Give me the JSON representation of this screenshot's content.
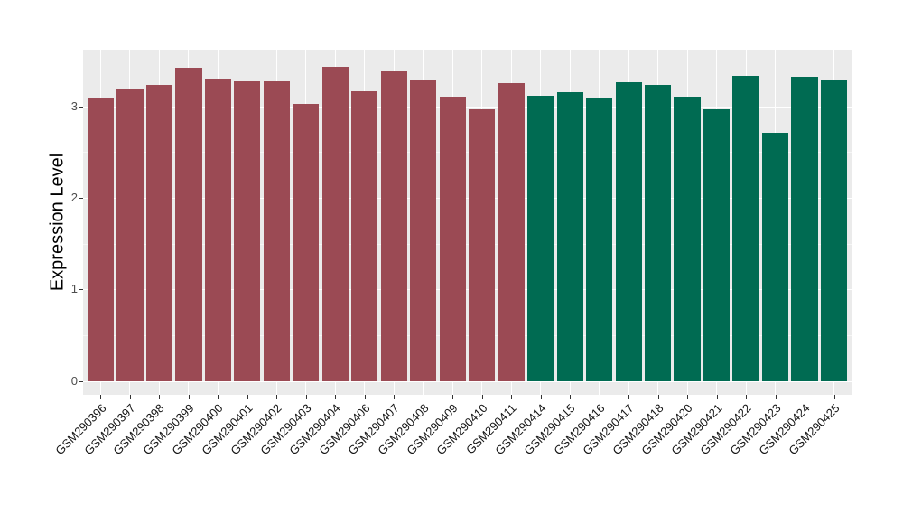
{
  "chart_data": {
    "type": "bar",
    "title": "",
    "xlabel": "",
    "ylabel": "Expression Level",
    "yticks": [
      0,
      1,
      2,
      3
    ],
    "minor_gridlines": [
      0.5,
      1.5,
      2.5,
      3.5
    ],
    "ylim": [
      0,
      3.62
    ],
    "grid": "on",
    "legend_position": "none",
    "x_tick_label_rotation_deg": 45,
    "categories": [
      "GSM290396",
      "GSM290397",
      "GSM290398",
      "GSM290399",
      "GSM290400",
      "GSM290401",
      "GSM290402",
      "GSM290403",
      "GSM290404",
      "GSM290406",
      "GSM290407",
      "GSM290408",
      "GSM290409",
      "GSM290410",
      "GSM290411",
      "GSM290414",
      "GSM290415",
      "GSM290416",
      "GSM290417",
      "GSM290418",
      "GSM290420",
      "GSM290421",
      "GSM290422",
      "GSM290423",
      "GSM290424",
      "GSM290425"
    ],
    "values": [
      3.1,
      3.2,
      3.23,
      3.42,
      3.3,
      3.27,
      3.27,
      3.03,
      3.43,
      3.17,
      3.38,
      3.29,
      3.11,
      2.97,
      3.25,
      3.12,
      3.16,
      3.09,
      3.26,
      3.23,
      3.11,
      2.97,
      3.33,
      2.71,
      3.32,
      3.29
    ],
    "bar_groups": [
      "maroon",
      "maroon",
      "maroon",
      "maroon",
      "maroon",
      "maroon",
      "maroon",
      "maroon",
      "maroon",
      "maroon",
      "maroon",
      "maroon",
      "maroon",
      "maroon",
      "maroon",
      "green",
      "green",
      "green",
      "green",
      "green",
      "green",
      "green",
      "green",
      "green",
      "green",
      "green"
    ],
    "colors": {
      "maroon": "#9B4A54",
      "green": "#006B52",
      "panel_background": "#EBEBEB",
      "gridline": "#FFFFFF",
      "y_tick_text": "#4D4D4D",
      "x_tick_text": "#141414",
      "tick_mark": "#333333"
    }
  }
}
